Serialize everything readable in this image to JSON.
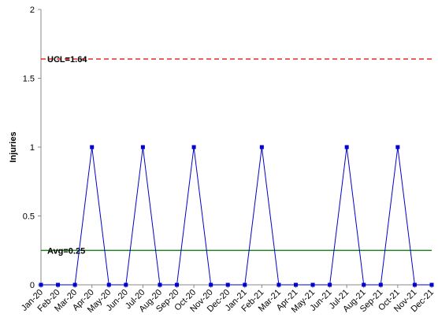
{
  "chart_data": {
    "type": "line",
    "y_label": "Injuries",
    "categories": [
      "Jan-20",
      "Feb-20",
      "Mar-20",
      "Apr-20",
      "May-20",
      "Jun-20",
      "Jul-20",
      "Aug-20",
      "Sep-20",
      "Oct-20",
      "Nov-20",
      "Dec-20",
      "Jan-21",
      "Feb-21",
      "Mar-21",
      "Apr-21",
      "May-21",
      "Jun-21",
      "Jul-21",
      "Aug-21",
      "Sep-21",
      "Oct-21",
      "Nov-21",
      "Dec-21"
    ],
    "series": [
      {
        "color": "#0000cc",
        "values": [
          0,
          0,
          0,
          1,
          0,
          0,
          1,
          0,
          0,
          1,
          0,
          0,
          0,
          1,
          0,
          0,
          0,
          0,
          1,
          0,
          0,
          1,
          0,
          0
        ]
      }
    ],
    "ylim": [
      0,
      2
    ],
    "yticks": [
      0,
      0.5,
      1,
      1.5,
      2
    ],
    "reference_lines": [
      {
        "label": "UCL=1.64",
        "value": 1.64,
        "color": "#dd0000",
        "dashed": true
      },
      {
        "label": "Avg=0.25",
        "value": 0.25,
        "color": "#007000",
        "dashed": false
      }
    ]
  }
}
